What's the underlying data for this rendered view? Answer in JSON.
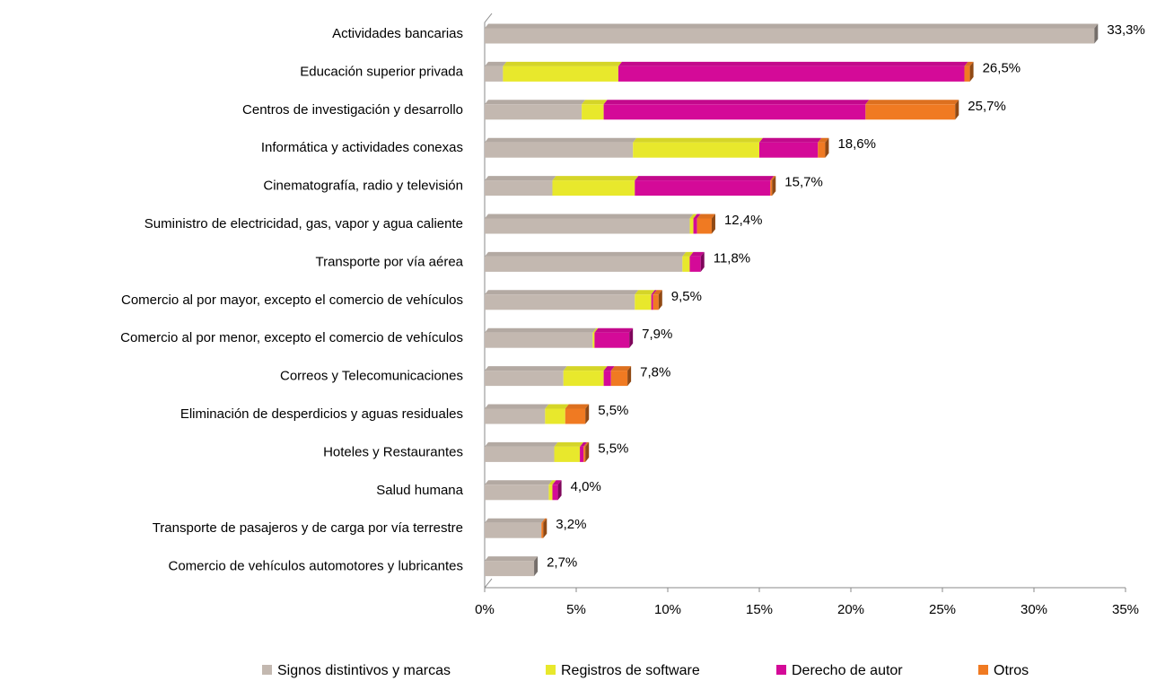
{
  "chart_data": {
    "type": "stacked_barh",
    "categories": [
      "Actividades bancarias",
      "Educación superior privada",
      "Centros de investigación y desarrollo",
      "Informática y actividades conexas",
      "Cinematografía, radio y televisión",
      "Suministro de electricidad, gas, vapor y agua caliente",
      "Transporte por vía aérea",
      "Comercio al por mayor, excepto el comercio de vehículos",
      "Comercio al por menor, excepto el comercio de vehículos",
      "Correos y Telecomunicaciones",
      "Eliminación de desperdicios y aguas residuales",
      "Hoteles y Restaurantes",
      "Salud humana",
      "Transporte de pasajeros y de carga por vía terrestre",
      "Comercio de vehículos automotores y lubricantes"
    ],
    "series": [
      {
        "name": "Signos distintivos y marcas",
        "color": "#c3b8b0",
        "values": [
          33.3,
          1.0,
          5.3,
          8.1,
          3.7,
          11.2,
          10.8,
          8.2,
          5.9,
          4.3,
          3.3,
          3.8,
          3.5,
          3.1,
          2.7
        ]
      },
      {
        "name": "Registros de software",
        "color": "#e8e82c",
        "values": [
          0,
          6.3,
          1.2,
          6.9,
          4.5,
          0.2,
          0.4,
          0.9,
          0.1,
          2.2,
          1.1,
          1.4,
          0.2,
          0,
          0
        ]
      },
      {
        "name": "Derecho de autor",
        "color": "#d40a98",
        "values": [
          0,
          18.9,
          14.3,
          3.2,
          7.4,
          0.2,
          0.6,
          0.1,
          1.9,
          0.4,
          0,
          0.2,
          0.3,
          0,
          0
        ]
      },
      {
        "name": "Otros",
        "color": "#f07a22",
        "values": [
          0,
          0.3,
          4.9,
          0.4,
          0.1,
          0.8,
          0,
          0.3,
          0,
          0.9,
          1.1,
          0.1,
          0,
          0.1,
          0
        ]
      }
    ],
    "totals": [
      33.3,
      26.5,
      25.7,
      18.6,
      15.7,
      12.4,
      11.8,
      9.5,
      7.9,
      7.8,
      5.5,
      5.5,
      4.0,
      3.2,
      2.7
    ],
    "total_labels": [
      "33,3%",
      "26,5%",
      "25,7%",
      "18,6%",
      "15,7%",
      "12,4%",
      "11,8%",
      "9,5%",
      "7,9%",
      "7,8%",
      "5,5%",
      "5,5%",
      "4,0%",
      "3,2%",
      "2,7%"
    ],
    "xlim": [
      0,
      35
    ],
    "xticks": [
      {
        "value": 0,
        "label": "0%"
      },
      {
        "value": 5,
        "label": "5%"
      },
      {
        "value": 10,
        "label": "10%"
      },
      {
        "value": 15,
        "label": "15%"
      },
      {
        "value": 20,
        "label": "20%"
      },
      {
        "value": 25,
        "label": "25%"
      },
      {
        "value": 30,
        "label": "30%"
      },
      {
        "value": 35,
        "label": "35%"
      }
    ],
    "legend": "bottom"
  }
}
